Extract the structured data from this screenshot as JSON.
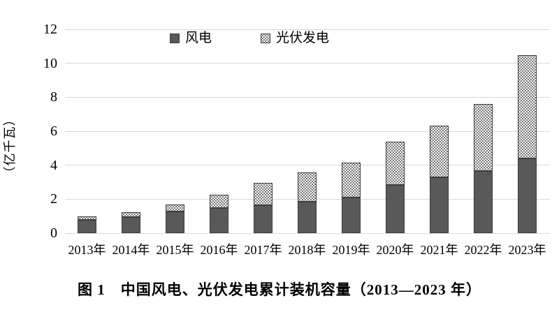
{
  "figure": {
    "caption": "图 1　中国风电、光伏发电累计装机容量（2013—2023 年）"
  },
  "chart_data": {
    "type": "bar",
    "stacked": true,
    "title": "",
    "ylabel": "（亿千瓦）",
    "xlabel": "",
    "ylim": [
      0,
      12
    ],
    "yticks": [
      0,
      2,
      4,
      6,
      8,
      10,
      12
    ],
    "grid": "horizontal",
    "legend_position": "top",
    "categories": [
      "2013年",
      "2014年",
      "2015年",
      "2016年",
      "2017年",
      "2018年",
      "2019年",
      "2020年",
      "2021年",
      "2022年",
      "2023年"
    ],
    "series": [
      {
        "name": "风电",
        "style": "solid",
        "color": "#595959",
        "values": [
          0.77,
          0.96,
          1.29,
          1.49,
          1.64,
          1.84,
          2.1,
          2.82,
          3.28,
          3.65,
          4.41
        ]
      },
      {
        "name": "光伏发电",
        "style": "dotted-pattern",
        "color": "#4a4a4a",
        "values": [
          0.19,
          0.28,
          0.43,
          0.77,
          1.3,
          1.74,
          2.04,
          2.53,
          3.06,
          3.93,
          6.09
        ]
      }
    ],
    "totals": [
      0.96,
      1.24,
      1.72,
      2.26,
      2.94,
      3.58,
      4.14,
      5.35,
      6.34,
      7.58,
      10.5
    ]
  },
  "colors": {
    "wind_bar": "#595959",
    "pv_pattern_dot": "#4a4a4a",
    "bar_border": "#3c3c3c",
    "gridline": "#d9d9d9",
    "text": "#000000",
    "background": "#ffffff"
  }
}
